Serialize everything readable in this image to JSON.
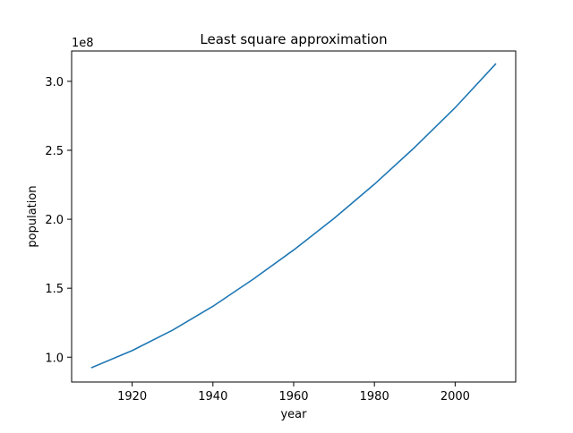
{
  "chart_data": {
    "type": "line",
    "title": "Least square approximation",
    "xlabel": "year",
    "ylabel": "population",
    "offset_label": "1e8",
    "xlim": [
      1905,
      2015
    ],
    "ylim": [
      0.82,
      3.22
    ],
    "xticks": [
      1920,
      1940,
      1960,
      1980,
      2000
    ],
    "xtick_labels": [
      "1920",
      "1940",
      "1960",
      "1980",
      "2000"
    ],
    "yticks": [
      1.0,
      1.5,
      2.0,
      2.5,
      3.0
    ],
    "ytick_labels": [
      "1.0",
      "1.5",
      "2.0",
      "2.5",
      "3.0"
    ],
    "grid": false,
    "series": [
      {
        "color": "#1f77b4",
        "x": [
          1910,
          1920,
          1930,
          1940,
          1950,
          1960,
          1970,
          1980,
          1990,
          2000,
          2010
        ],
        "y": [
          0.925,
          1.048,
          1.196,
          1.369,
          1.566,
          1.777,
          2.006,
          2.254,
          2.522,
          2.809,
          3.125
        ]
      }
    ]
  }
}
